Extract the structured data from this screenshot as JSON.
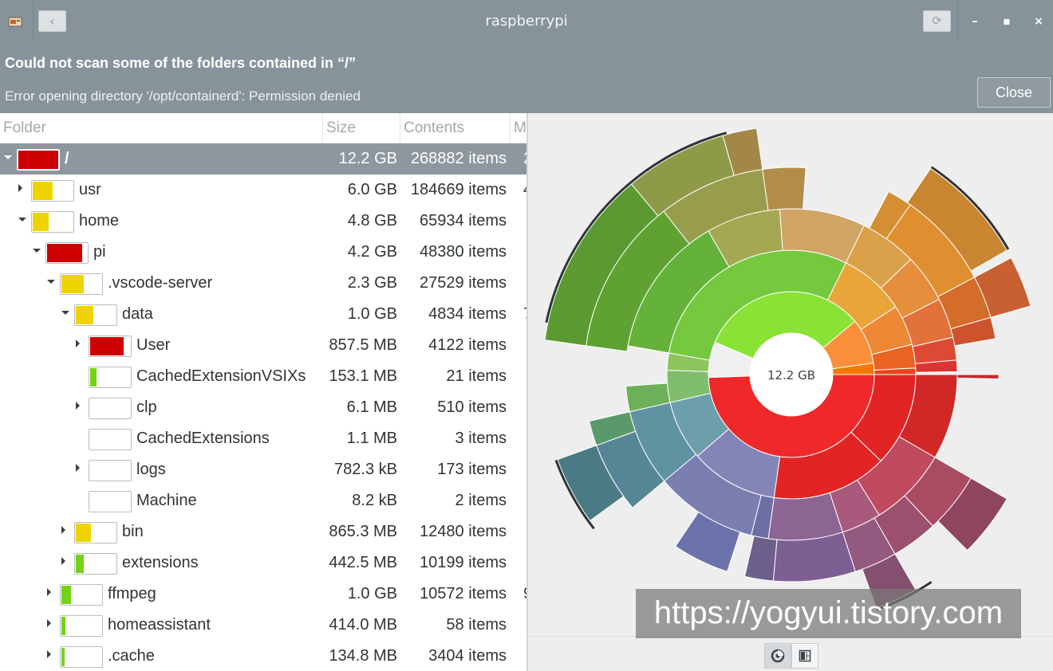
{
  "window": {
    "title": "raspberrypi",
    "back_label": "‹",
    "reload_label": "⟳",
    "minimize_label": "–",
    "maximize_label": "▪",
    "close_label": "×"
  },
  "infobar": {
    "heading": "Could not scan some of the folders contained in “/”",
    "detail": "Error opening directory '/opt/containerd': Permission denied",
    "close_button": "Close"
  },
  "columns": [
    "Folder",
    "Size",
    "Contents",
    "M"
  ],
  "rows": [
    {
      "name": "/",
      "size": "12.2 GB",
      "contents": "268882 items",
      "extra": "2",
      "depth": 0,
      "expander": "expanded",
      "fill_color": "#cc0000",
      "fill": 1.0,
      "selected": true
    },
    {
      "name": "usr",
      "size": "6.0 GB",
      "contents": "184669 items",
      "extra": "4",
      "depth": 1,
      "expander": "collapsed",
      "fill_color": "#edd400",
      "fill": 0.49
    },
    {
      "name": "home",
      "size": "4.8 GB",
      "contents": "65934 items",
      "extra": "",
      "depth": 1,
      "expander": "expanded",
      "fill_color": "#edd400",
      "fill": 0.39
    },
    {
      "name": "pi",
      "size": "4.2 GB",
      "contents": "48380 items",
      "extra": "",
      "depth": 2,
      "expander": "expanded",
      "fill_color": "#cc0000",
      "fill": 0.88
    },
    {
      "name": ".vscode-server",
      "size": "2.3 GB",
      "contents": "27529 items",
      "extra": "",
      "depth": 3,
      "expander": "expanded",
      "fill_color": "#edd400",
      "fill": 0.55
    },
    {
      "name": "data",
      "size": "1.0 GB",
      "contents": "4834 items",
      "extra": "7",
      "depth": 4,
      "expander": "expanded",
      "fill_color": "#edd400",
      "fill": 0.43
    },
    {
      "name": "User",
      "size": "857.5 MB",
      "contents": "4122 items",
      "extra": "",
      "depth": 5,
      "expander": "collapsed",
      "fill_color": "#cc0000",
      "fill": 0.84
    },
    {
      "name": "CachedExtensionVSIXs",
      "size": "153.1 MB",
      "contents": "21 items",
      "extra": "",
      "depth": 5,
      "expander": "none",
      "fill_color": "#73d216",
      "fill": 0.15
    },
    {
      "name": "clp",
      "size": "6.1 MB",
      "contents": "510 items",
      "extra": "",
      "depth": 5,
      "expander": "collapsed",
      "fill_color": "#ffffff",
      "fill": 0.0
    },
    {
      "name": "CachedExtensions",
      "size": "1.1 MB",
      "contents": "3 items",
      "extra": "",
      "depth": 5,
      "expander": "none",
      "fill_color": "#ffffff",
      "fill": 0.0
    },
    {
      "name": "logs",
      "size": "782.3 kB",
      "contents": "173 items",
      "extra": "",
      "depth": 5,
      "expander": "collapsed",
      "fill_color": "#ffffff",
      "fill": 0.0
    },
    {
      "name": "Machine",
      "size": "8.2 kB",
      "contents": "2 items",
      "extra": "",
      "depth": 5,
      "expander": "none",
      "fill_color": "#ffffff",
      "fill": 0.0
    },
    {
      "name": "bin",
      "size": "865.3 MB",
      "contents": "12480 items",
      "extra": "",
      "depth": 4,
      "expander": "collapsed",
      "fill_color": "#edd400",
      "fill": 0.37
    },
    {
      "name": "extensions",
      "size": "442.5 MB",
      "contents": "10199 items",
      "extra": "",
      "depth": 4,
      "expander": "collapsed",
      "fill_color": "#73d216",
      "fill": 0.19
    },
    {
      "name": "ffmpeg",
      "size": "1.0 GB",
      "contents": "10572 items",
      "extra": "9",
      "depth": 3,
      "expander": "collapsed",
      "fill_color": "#73d216",
      "fill": 0.24
    },
    {
      "name": "homeassistant",
      "size": "414.0 MB",
      "contents": "58 items",
      "extra": "",
      "depth": 3,
      "expander": "collapsed",
      "fill_color": "#73d216",
      "fill": 0.1
    },
    {
      "name": ".cache",
      "size": "134.8 MB",
      "contents": "3404 items",
      "extra": "",
      "depth": 3,
      "expander": "collapsed",
      "fill_color": "#73d216",
      "fill": 0.03
    }
  ],
  "chart": {
    "center_label": "12.2 GB",
    "root_color": "#ffffff"
  },
  "view_buttons": {
    "rings_icon": "rings-chart-icon",
    "treemap_icon": "treemap-chart-icon"
  },
  "watermark": "https://yogyui.tistory.com"
}
